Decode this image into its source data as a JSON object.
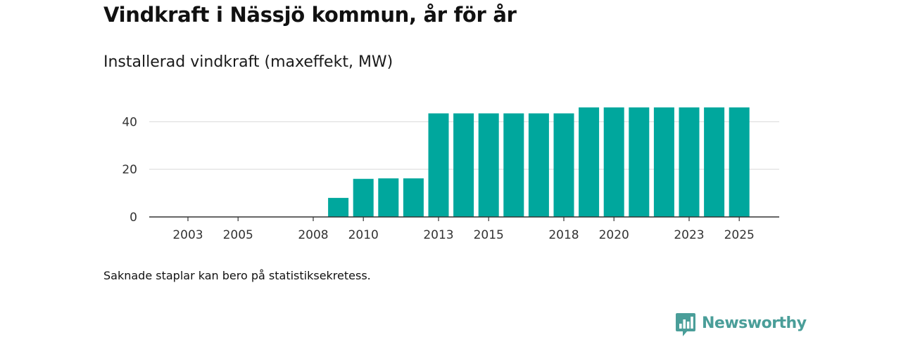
{
  "header": {
    "title": "Vindkraft i Nässjö kommun, år för år",
    "subtitle": "Installerad vindkraft (maxeffekt, MW)"
  },
  "footer": {
    "note": "Saknade staplar kan bero på statistiksekretess."
  },
  "brand": {
    "name": "Newsworthy",
    "icon": "newsworthy-logo-icon",
    "color": "#4a9e99"
  },
  "colors": {
    "bar": "#00a79d",
    "gridline": "#d9d9d9",
    "axis": "#333333"
  },
  "chart_data": {
    "type": "bar",
    "title": "Vindkraft i Nässjö kommun, år för år",
    "subtitle": "Installerad vindkraft (maxeffekt, MW)",
    "xlabel": "",
    "ylabel": "",
    "categories": [
      "2003",
      "2004",
      "2005",
      "2006",
      "2007",
      "2008",
      "2009",
      "2010",
      "2011",
      "2012",
      "2013",
      "2014",
      "2015",
      "2016",
      "2017",
      "2018",
      "2019",
      "2020",
      "2021",
      "2022",
      "2023",
      "2024",
      "2025"
    ],
    "values": [
      0,
      0,
      0,
      0,
      0,
      0,
      8,
      16,
      16.2,
      16.2,
      43.5,
      43.5,
      43.5,
      43.5,
      43.5,
      43.5,
      46,
      46,
      46,
      46,
      46,
      46,
      46
    ],
    "x_tick_labels": [
      "2003",
      "2005",
      "2008",
      "2010",
      "2013",
      "2015",
      "2018",
      "2020",
      "2023",
      "2025"
    ],
    "y_ticks": [
      0,
      20,
      40
    ],
    "ylim": [
      0,
      46
    ],
    "grid": true,
    "legend": "none"
  }
}
